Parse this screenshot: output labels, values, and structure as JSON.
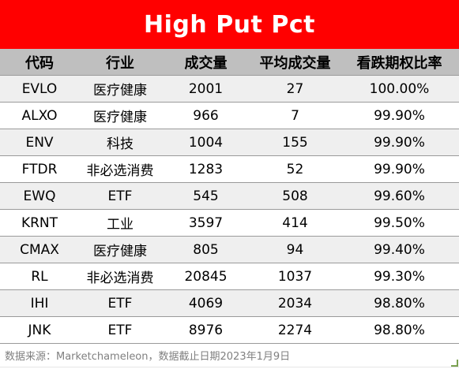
{
  "title": "High Put Pct",
  "columns": [
    "代码",
    "行业",
    "成交量",
    "平均成交量",
    "看跌期权比率"
  ],
  "rows": [
    {
      "code": "EVLO",
      "sector": "医疗健康",
      "volume": "2001",
      "avg_volume": "27",
      "put_ratio": "100.00%"
    },
    {
      "code": "ALXO",
      "sector": "医疗健康",
      "volume": "966",
      "avg_volume": "7",
      "put_ratio": "99.90%"
    },
    {
      "code": "ENV",
      "sector": "科技",
      "volume": "1004",
      "avg_volume": "155",
      "put_ratio": "99.90%"
    },
    {
      "code": "FTDR",
      "sector": "非必选消费",
      "volume": "1283",
      "avg_volume": "52",
      "put_ratio": "99.90%"
    },
    {
      "code": "EWQ",
      "sector": "ETF",
      "volume": "545",
      "avg_volume": "508",
      "put_ratio": "99.60%"
    },
    {
      "code": "KRNT",
      "sector": "工业",
      "volume": "3597",
      "avg_volume": "414",
      "put_ratio": "99.50%"
    },
    {
      "code": "CMAX",
      "sector": "医疗健康",
      "volume": "805",
      "avg_volume": "94",
      "put_ratio": "99.40%"
    },
    {
      "code": "RL",
      "sector": "非必选消费",
      "volume": "20845",
      "avg_volume": "1037",
      "put_ratio": "99.30%"
    },
    {
      "code": "IHI",
      "sector": "ETF",
      "volume": "4069",
      "avg_volume": "2034",
      "put_ratio": "98.80%"
    },
    {
      "code": "JNK",
      "sector": "ETF",
      "volume": "8976",
      "avg_volume": "2274",
      "put_ratio": "98.80%"
    }
  ],
  "footer": "数据来源：Marketchameleon，数据截止日期2023年1月9日",
  "colors": {
    "title_background": "#ff0000",
    "title_text": "#ffffff",
    "header_background": "#bfbfbf",
    "row_stripe": "#efefef",
    "footer_text": "#808080"
  }
}
